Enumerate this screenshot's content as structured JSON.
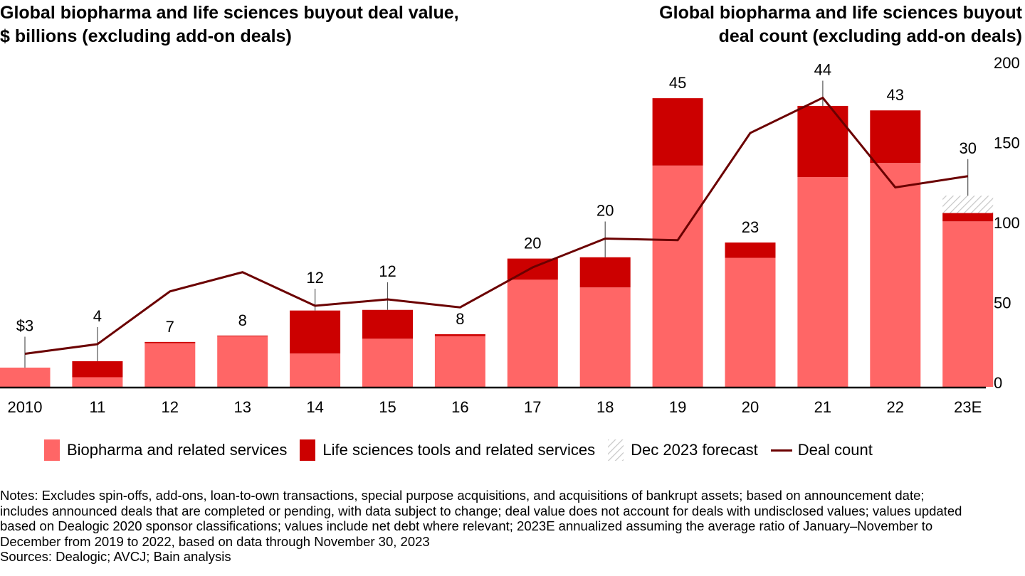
{
  "titles": {
    "left_line1": "Global biopharma and life sciences buyout deal value,",
    "left_line2": "$ billions (excluding add-on deals)",
    "right_line1": "Global biopharma and life sciences buyout",
    "right_line2": "deal count (excluding add-on deals)"
  },
  "colors": {
    "biopharma": "#ff6666",
    "life_sciences": "#cc0000",
    "forecast_hatch": "#c8c8c8",
    "deal_count_line": "#6b0000",
    "axis": "#000000",
    "leader": "#555555"
  },
  "chart_data": {
    "type": "bar",
    "title": "Global biopharma and life sciences buyout deal value and deal count (excluding add-on deals)",
    "xlabel": "",
    "ylabel_left": "$ billions",
    "ylabel_right": "Deal count",
    "categories": [
      "2010",
      "11",
      "12",
      "13",
      "14",
      "15",
      "16",
      "17",
      "18",
      "19",
      "20",
      "21",
      "22",
      "23E"
    ],
    "series": [
      {
        "name": "Biopharma and related services",
        "kind": "stacked-bar",
        "values": [
          3.0,
          1.5,
          6.8,
          7.9,
          5.2,
          7.5,
          7.9,
          16.7,
          15.5,
          34.5,
          20.1,
          32.7,
          34.9,
          25.8
        ]
      },
      {
        "name": "Life sciences tools and related services",
        "kind": "stacked-bar",
        "values": [
          0.0,
          2.5,
          0.2,
          0.1,
          6.7,
          4.5,
          0.3,
          3.3,
          4.7,
          10.5,
          2.4,
          11.1,
          8.2,
          1.3
        ]
      },
      {
        "name": "Dec 2023 forecast",
        "kind": "stacked-bar-hatched",
        "values": [
          0,
          0,
          0,
          0,
          0,
          0,
          0,
          0,
          0,
          0,
          0,
          0,
          0,
          2.7
        ]
      },
      {
        "name": "Deal count",
        "kind": "line",
        "axis": "right",
        "values": [
          18,
          24,
          57,
          69,
          48,
          52,
          47,
          72,
          90,
          89,
          156,
          178,
          122,
          129
        ]
      }
    ],
    "total_labels": [
      "$3",
      "4",
      "7",
      "8",
      "12",
      "12",
      "8",
      "20",
      "20",
      "45",
      "23",
      "44",
      "43",
      "30"
    ],
    "label_has_leader": [
      true,
      true,
      false,
      false,
      true,
      true,
      false,
      false,
      true,
      false,
      false,
      true,
      false,
      true
    ],
    "ylim_left": [
      0,
      50
    ],
    "ylim_right": [
      0,
      200
    ],
    "right_ticks": [
      "0",
      "50",
      "100",
      "150",
      "200"
    ],
    "right_tick_values": [
      0,
      50,
      100,
      150,
      200
    ],
    "grid": false,
    "legend_position": "bottom"
  },
  "legend": [
    {
      "label": "Biopharma and related services",
      "type": "biopharma"
    },
    {
      "label": "Life sciences tools and related services",
      "type": "life_sciences"
    },
    {
      "label": "Dec 2023 forecast",
      "type": "forecast"
    },
    {
      "label": "Deal count",
      "type": "line"
    }
  ],
  "notes": {
    "lines": [
      "Notes: Excludes spin-offs, add-ons, loan-to-own transactions, special purpose acquisitions, and acquisitions of bankrupt assets; based on announcement date;",
      "includes announced deals that are completed or pending, with data subject to change; deal value does not account for deals with undisclosed values; values updated",
      "based on Dealogic 2020 sponsor classifications; values include net debt where relevant; 2023E annualized assuming the average ratio of January–November to",
      "December from 2019 to 2022, based on data through November 30, 2023"
    ],
    "sources": "Sources: Dealogic; AVCJ; Bain analysis"
  }
}
